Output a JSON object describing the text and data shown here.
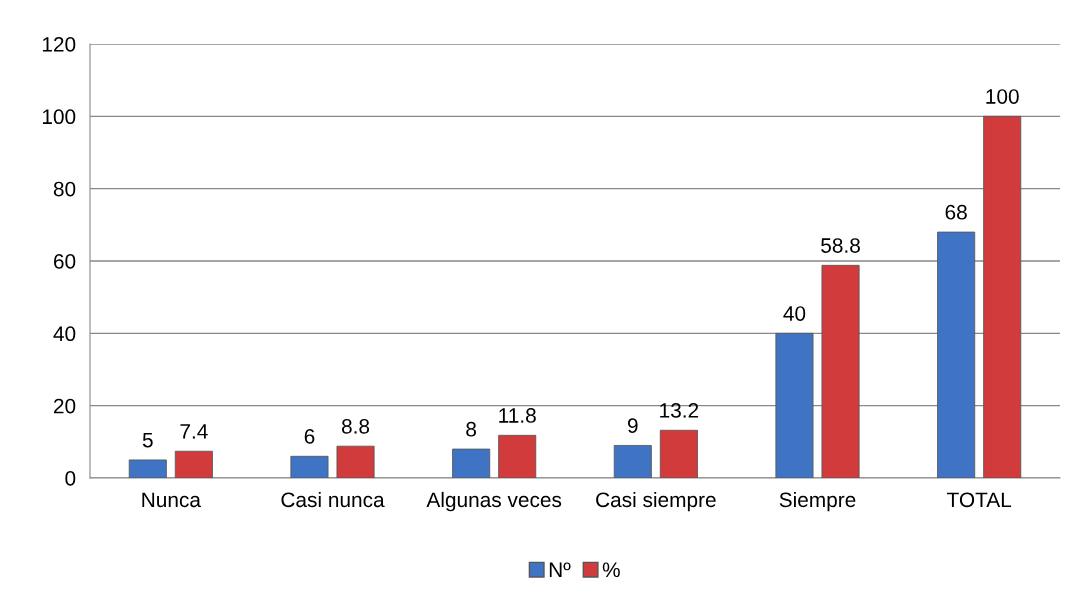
{
  "chart_data": {
    "type": "bar",
    "categories": [
      "Nunca",
      "Casi nunca",
      "Algunas veces",
      "Casi siempre",
      "Siempre",
      "TOTAL"
    ],
    "series": [
      {
        "name": "Nº",
        "color": "#3f74c4",
        "values": [
          5,
          6,
          8,
          9,
          40,
          68
        ]
      },
      {
        "name": "%",
        "color": "#d13b3b",
        "values": [
          7.4,
          8.8,
          11.8,
          13.2,
          58.8,
          100
        ]
      }
    ],
    "ylim": [
      0,
      120
    ],
    "yticks": [
      0,
      20,
      40,
      60,
      80,
      100,
      120
    ],
    "grid": "y",
    "legend": "bottom",
    "data_labels": true
  }
}
